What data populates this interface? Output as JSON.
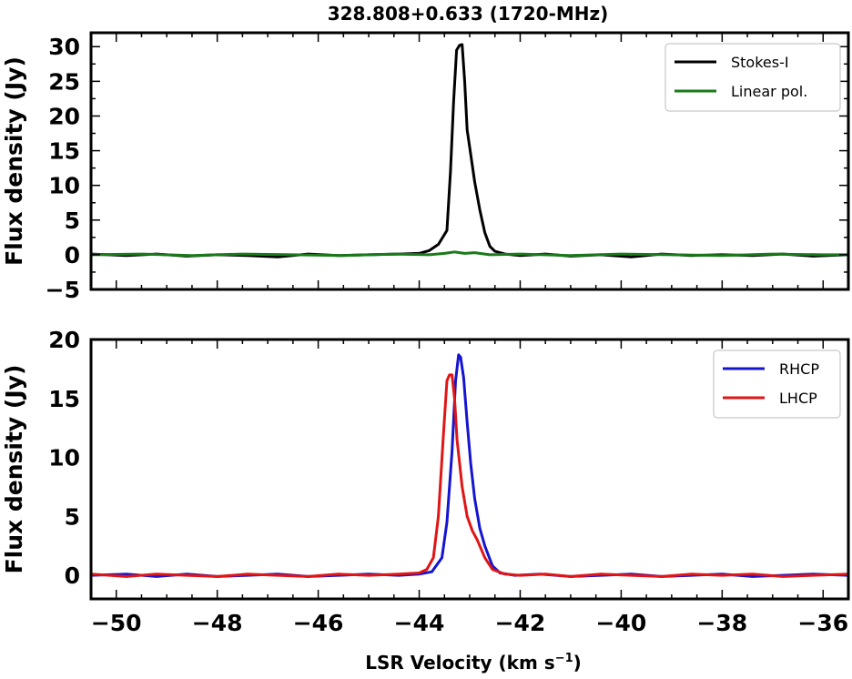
{
  "figure": {
    "title": "328.808+0.633 (1720-MHz)",
    "xlabel_main": "LSR Velocity (km s",
    "xlabel_sup": "−1",
    "xlabel_close": ")"
  },
  "chart_data": [
    {
      "type": "line",
      "ylabel": "Flux density (Jy)",
      "xlim": [
        -50.5,
        -35.5
      ],
      "ylim": [
        -5,
        32
      ],
      "xticks": [
        -50,
        -48,
        -46,
        -44,
        -42,
        -40,
        -38,
        -36
      ],
      "yticks": [
        -5,
        0,
        5,
        10,
        15,
        20,
        25,
        30
      ],
      "ytick_labels": [
        "−5",
        "0",
        "5",
        "10",
        "15",
        "20",
        "25",
        "30"
      ],
      "grid": false,
      "legend_position": "top-right",
      "series": [
        {
          "name": "Stokes-I",
          "color": "#000000",
          "x": [
            -50.5,
            -49.8,
            -49.2,
            -48.6,
            -48.0,
            -47.4,
            -46.8,
            -46.2,
            -45.6,
            -45.0,
            -44.4,
            -44.0,
            -43.8,
            -43.62,
            -43.45,
            -43.38,
            -43.32,
            -43.26,
            -43.2,
            -43.15,
            -43.1,
            -43.05,
            -43.0,
            -42.9,
            -42.8,
            -42.7,
            -42.6,
            -42.5,
            -42.3,
            -42.0,
            -41.5,
            -41.0,
            -40.4,
            -39.8,
            -39.2,
            -38.6,
            -38.0,
            -37.4,
            -36.8,
            -36.2,
            -35.5
          ],
          "values": [
            0.1,
            -0.1,
            0.1,
            -0.2,
            0.0,
            -0.1,
            -0.3,
            0.1,
            -0.1,
            0.0,
            0.1,
            0.2,
            0.6,
            1.5,
            3.5,
            12.0,
            22.0,
            29.5,
            30.2,
            30.3,
            25.0,
            18.0,
            15.5,
            10.5,
            6.5,
            3.2,
            1.2,
            0.5,
            0.1,
            -0.1,
            0.1,
            -0.2,
            0.0,
            -0.3,
            0.1,
            -0.1,
            0.0,
            -0.1,
            0.1,
            -0.2,
            0.0
          ]
        },
        {
          "name": "Linear pol.",
          "color": "#1a7a1a",
          "x": [
            -50.5,
            -49.5,
            -48.5,
            -47.5,
            -46.5,
            -45.5,
            -44.5,
            -43.8,
            -43.5,
            -43.3,
            -43.1,
            -42.9,
            -42.6,
            -42.0,
            -41.0,
            -40.0,
            -39.0,
            -38.0,
            -37.0,
            -36.0,
            -35.5
          ],
          "values": [
            0.0,
            0.1,
            -0.1,
            0.1,
            0.0,
            -0.1,
            0.1,
            0.0,
            0.2,
            0.4,
            0.2,
            0.3,
            0.0,
            0.1,
            -0.1,
            0.1,
            0.0,
            -0.1,
            0.1,
            0.0,
            0.0
          ]
        }
      ]
    },
    {
      "type": "line",
      "ylabel": "Flux density (Jy)",
      "xlabel": "LSR Velocity (km s−1)",
      "xlim": [
        -50.5,
        -35.5
      ],
      "ylim": [
        -2,
        20
      ],
      "xticks": [
        -50,
        -48,
        -46,
        -44,
        -42,
        -40,
        -38,
        -36
      ],
      "xtick_labels": [
        "−50",
        "−48",
        "−46",
        "−44",
        "−42",
        "−40",
        "−38",
        "−36"
      ],
      "yticks": [
        0,
        5,
        10,
        15,
        20
      ],
      "ytick_labels": [
        "0",
        "5",
        "10",
        "15",
        "20"
      ],
      "grid": false,
      "legend_position": "top-right",
      "series": [
        {
          "name": "RHCP",
          "color": "#1515d0",
          "x": [
            -50.5,
            -49.8,
            -49.2,
            -48.6,
            -48.0,
            -47.4,
            -46.8,
            -46.2,
            -45.6,
            -45.0,
            -44.4,
            -44.0,
            -43.75,
            -43.55,
            -43.45,
            -43.35,
            -43.28,
            -43.22,
            -43.18,
            -43.12,
            -43.05,
            -42.98,
            -42.9,
            -42.8,
            -42.7,
            -42.55,
            -42.4,
            -42.1,
            -41.6,
            -41.0,
            -40.4,
            -39.8,
            -39.2,
            -38.6,
            -38.0,
            -37.4,
            -36.8,
            -36.2,
            -35.5
          ],
          "values": [
            0.0,
            0.1,
            -0.1,
            0.1,
            -0.1,
            0.0,
            0.1,
            -0.1,
            0.0,
            0.1,
            0.0,
            0.1,
            0.3,
            1.5,
            4.5,
            10.5,
            16.5,
            18.7,
            18.5,
            16.8,
            13.0,
            9.5,
            6.5,
            4.0,
            2.5,
            0.8,
            0.2,
            0.0,
            0.1,
            -0.1,
            0.0,
            0.1,
            -0.1,
            0.0,
            0.1,
            -0.1,
            0.0,
            0.1,
            0.0
          ]
        },
        {
          "name": "LHCP",
          "color": "#e01515",
          "x": [
            -50.5,
            -49.8,
            -49.2,
            -48.6,
            -48.0,
            -47.4,
            -46.8,
            -46.2,
            -45.6,
            -45.0,
            -44.4,
            -44.0,
            -43.85,
            -43.72,
            -43.62,
            -43.52,
            -43.45,
            -43.4,
            -43.35,
            -43.3,
            -43.25,
            -43.15,
            -43.05,
            -42.95,
            -42.85,
            -42.7,
            -42.55,
            -42.3,
            -42.0,
            -41.5,
            -41.0,
            -40.4,
            -39.8,
            -39.2,
            -38.6,
            -38.0,
            -37.4,
            -36.8,
            -36.2,
            -35.5
          ],
          "values": [
            0.1,
            -0.1,
            0.1,
            0.0,
            -0.1,
            0.1,
            0.0,
            -0.1,
            0.1,
            0.0,
            0.1,
            0.2,
            0.5,
            1.5,
            5.0,
            12.0,
            16.5,
            17.0,
            17.0,
            15.0,
            11.5,
            7.5,
            5.0,
            3.8,
            3.0,
            1.5,
            0.5,
            0.1,
            0.0,
            0.1,
            -0.1,
            0.1,
            0.0,
            -0.1,
            0.1,
            0.0,
            0.1,
            -0.1,
            0.0,
            0.1
          ]
        }
      ]
    }
  ]
}
